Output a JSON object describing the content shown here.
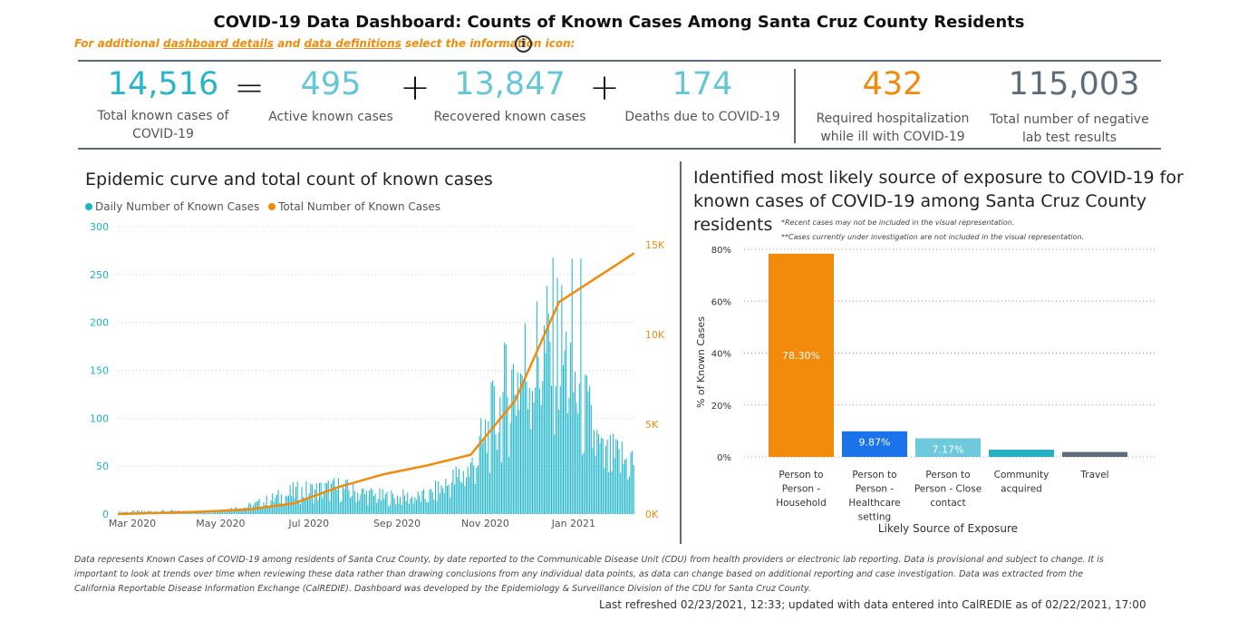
{
  "header": {
    "title": "COVID-19 Data Dashboard: Counts of Known Cases Among Santa Cruz County Residents",
    "subtitle_prefix": "For additional ",
    "subtitle_link1": "dashboard details",
    "subtitle_mid": " and ",
    "subtitle_link2": "data definitions",
    "subtitle_suffix": " select the information icon:",
    "info_icon": "info-icon"
  },
  "kpis": {
    "total": {
      "value": "14,516",
      "label1": "Total known cases of",
      "label2": "COVID-19",
      "color": "#2bb5c8"
    },
    "eq": "=",
    "active": {
      "value": "495",
      "label": "Active known cases",
      "color": "#64c6d6"
    },
    "plus1": "+",
    "recovered": {
      "value": "13,847",
      "label": "Recovered known cases",
      "color": "#64c6d6"
    },
    "plus2": "+",
    "deaths": {
      "value": "174",
      "label": "Deaths due to COVID-19",
      "color": "#64c6d6"
    },
    "hosp": {
      "value": "432",
      "label1": "Required hospitalization",
      "label2": "while ill with COVID-19",
      "color": "#f28b0c"
    },
    "negative": {
      "value": "115,003",
      "label1": "Total number of negative",
      "label2": "lab test results",
      "color": "#5d6b7a"
    }
  },
  "epi": {
    "title": "Epidemic curve and total count of known cases",
    "legend_daily": "Daily Number of Known Cases",
    "legend_total": "Total Number of Known Cases"
  },
  "exposure": {
    "title_line1": "Identified most likely source of exposure to COVID-19 for",
    "title_line2": "known cases of COVID-19 among Santa Cruz County",
    "title_line3": "residents",
    "note1": "*Recent cases may not be included in the visual representation.",
    "note2": "**Cases currently under investigation are not included in the visual representation."
  },
  "chart_data": [
    {
      "type": "bar+line",
      "title": "Epidemic curve and total count of known cases",
      "x_ticks": [
        "Mar 2020",
        "May 2020",
        "Jul 2020",
        "Sep 2020",
        "Nov 2020",
        "Jan 2021"
      ],
      "y_left_ticks": [
        "0",
        "50",
        "100",
        "150",
        "200",
        "250",
        "300"
      ],
      "y_left_range": [
        0,
        300
      ],
      "y_right_ticks": [
        "0K",
        "5K",
        "10K",
        "15K"
      ],
      "y_right_range": [
        0,
        16000
      ],
      "series": [
        {
          "name": "Daily Number of Known Cases",
          "type": "bar",
          "color": "#1ab4c8",
          "monthly_daily_avg": [
            {
              "month": "Mar 2020",
              "avg": 2
            },
            {
              "month": "Apr 2020",
              "avg": 3
            },
            {
              "month": "May 2020",
              "avg": 2
            },
            {
              "month": "Jun 2020",
              "avg": 8
            },
            {
              "month": "Jul 2020",
              "avg": 22
            },
            {
              "month": "Aug 2020",
              "avg": 26
            },
            {
              "month": "Sep 2020",
              "avg": 17
            },
            {
              "month": "Oct 2020",
              "avg": 17
            },
            {
              "month": "Nov 2020",
              "avg": 45
            },
            {
              "month": "Dec 2020",
              "avg": 140
            },
            {
              "month": "Jan 2021",
              "avg": 175
            },
            {
              "month": "Feb 2021",
              "avg": 55
            }
          ],
          "peak": 268
        },
        {
          "name": "Total Number of Known Cases",
          "type": "line",
          "color": "#f28b0c",
          "points": [
            {
              "x": "Mar 2020",
              "y": 0
            },
            {
              "x": "Apr 2020",
              "y": 60
            },
            {
              "x": "May 2020",
              "y": 140
            },
            {
              "x": "Jun 2020",
              "y": 260
            },
            {
              "x": "Jul 2020",
              "y": 600
            },
            {
              "x": "Aug 2020",
              "y": 1500
            },
            {
              "x": "Sep 2020",
              "y": 2200
            },
            {
              "x": "Oct 2020",
              "y": 2700
            },
            {
              "x": "Nov 2020",
              "y": 3300
            },
            {
              "x": "Dec 2020",
              "y": 6300
            },
            {
              "x": "Jan 2021",
              "y": 11800
            },
            {
              "x": "Feb 2021",
              "y": 14516
            }
          ]
        }
      ]
    },
    {
      "type": "bar",
      "title": "Identified most likely source of exposure to COVID-19 for known cases of COVID-19 among Santa Cruz County residents",
      "xlabel": "Likely Source of Exposure",
      "ylabel": "% of Known Cases",
      "y_ticks": [
        "0%",
        "20%",
        "40%",
        "60%",
        "80%"
      ],
      "ylim": [
        0,
        80
      ],
      "categories": [
        [
          "Person to",
          "Person -",
          "Household"
        ],
        [
          "Person to",
          "Person -",
          "Healthcare",
          "setting"
        ],
        [
          "Person to",
          "Person - Close",
          "contact"
        ],
        [
          "Community",
          "acquired"
        ],
        [
          "Travel"
        ]
      ],
      "values": [
        78.3,
        9.87,
        7.17,
        2.8,
        1.9
      ],
      "data_labels": [
        "78.30%",
        "9.87%",
        "7.17%",
        "",
        ""
      ],
      "colors": [
        "#f28b0c",
        "#1a73e8",
        "#6ec9dc",
        "#25b0c4",
        "#5d6b7a"
      ]
    }
  ],
  "footer": {
    "line1": "Data represents Known Cases of COVID-19 among residents of Santa Cruz County, by date reported to the Communicable Disease Unit (CDU) from health providers or electronic lab reporting.  Data is provisional and subject to change.  It is",
    "line2": "important to look at trends over time when reviewing these data rather than drawing conclusions from any individual data points, as data can change based on additional reporting and case investigation.  Data was extracted from the",
    "line3": "California Reportable Disease Information Exchange (CalREDIE).  Dashboard was developed by the Epidemiology & Surveillance Division of the CDU for Santa Cruz County.",
    "refreshed": "Last refreshed 02/23/2021, 12:33; updated with data entered into CalREDIE as of 02/22/2021, 17:00"
  }
}
